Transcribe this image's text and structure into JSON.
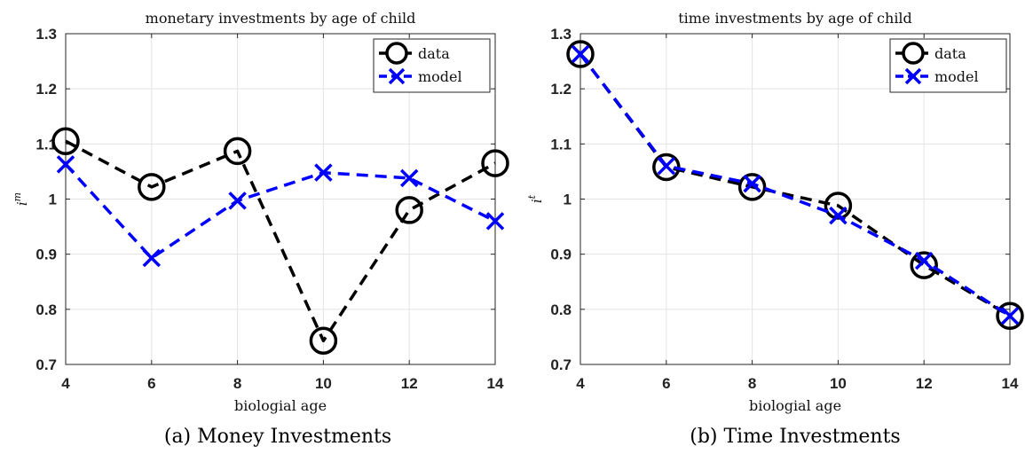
{
  "chart_data": [
    {
      "type": "line",
      "title": "monetary investments by age of child",
      "xlabel": "biologial age",
      "ylabel": "i^m",
      "ylabel_main": "i",
      "ylabel_sup": "m",
      "caption": "(a) Money Investments",
      "x": [
        4,
        6,
        8,
        10,
        12,
        14
      ],
      "xlim": [
        4,
        14
      ],
      "ylim": [
        0.7,
        1.3
      ],
      "xticks": [
        "4",
        "6",
        "8",
        "10",
        "12",
        "14"
      ],
      "yticks": [
        "0.7",
        "0.8",
        "0.9",
        "1",
        "1.1",
        "1.2",
        "1.3"
      ],
      "grid": true,
      "legend_position": "top-right",
      "series": [
        {
          "name": "data",
          "color": "#000000",
          "marker": "circle",
          "values": [
            1.105,
            1.022,
            1.087,
            0.743,
            0.98,
            1.065
          ]
        },
        {
          "name": "model",
          "color": "#0000ff",
          "marker": "x",
          "values": [
            1.063,
            0.893,
            0.997,
            1.048,
            1.038,
            0.96
          ]
        }
      ]
    },
    {
      "type": "line",
      "title": "time investments by age of child",
      "xlabel": "biologial age",
      "ylabel": "i^t",
      "ylabel_main": "i",
      "ylabel_sup": "t",
      "caption": "(b) Time Investments",
      "x": [
        4,
        6,
        8,
        10,
        12,
        14
      ],
      "xlim": [
        4,
        14
      ],
      "ylim": [
        0.7,
        1.3
      ],
      "xticks": [
        "4",
        "6",
        "8",
        "10",
        "12",
        "14"
      ],
      "yticks": [
        "0.7",
        "0.8",
        "0.9",
        "1",
        "1.1",
        "1.2",
        "1.3"
      ],
      "grid": true,
      "legend_position": "top-right",
      "series": [
        {
          "name": "data",
          "color": "#000000",
          "marker": "circle",
          "values": [
            1.263,
            1.058,
            1.022,
            0.988,
            0.88,
            0.788
          ]
        },
        {
          "name": "model",
          "color": "#0000ff",
          "marker": "x",
          "values": [
            1.263,
            1.06,
            1.028,
            0.97,
            0.888,
            0.788
          ]
        }
      ]
    }
  ]
}
